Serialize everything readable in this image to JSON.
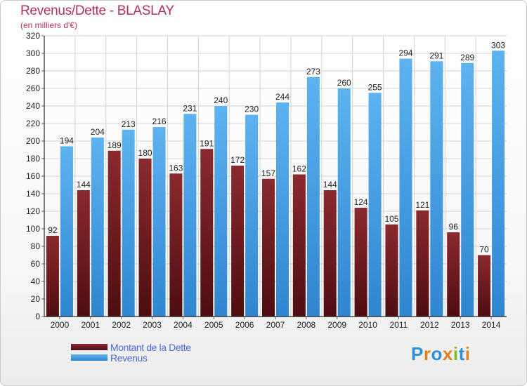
{
  "title": "Revenus/Dette - BLASLAY",
  "subtitle": "(en milliers d'€)",
  "colors": {
    "dette": "#6b1a1f",
    "revenus": "#3f9ee6",
    "grid": "#d4d4d4",
    "axis": "#000000"
  },
  "chart_data": {
    "type": "bar",
    "categories": [
      "2000",
      "2001",
      "2002",
      "2003",
      "2004",
      "2005",
      "2006",
      "2007",
      "2008",
      "2009",
      "2010",
      "2011",
      "2012",
      "2013",
      "2014"
    ],
    "series": [
      {
        "name": "Montant de la Dette",
        "values": [
          92,
          144,
          189,
          180,
          163,
          191,
          172,
          157,
          162,
          144,
          124,
          105,
          121,
          96,
          70
        ]
      },
      {
        "name": "Revenus",
        "values": [
          194,
          204,
          213,
          216,
          231,
          240,
          230,
          244,
          273,
          260,
          255,
          294,
          291,
          289,
          303
        ]
      }
    ],
    "ylim": [
      0,
      320
    ],
    "yticks": [
      0,
      20,
      40,
      60,
      80,
      100,
      120,
      140,
      160,
      180,
      200,
      220,
      240,
      260,
      280,
      300,
      320
    ],
    "grid": true,
    "legend_position": "bottom-left"
  },
  "legend": {
    "dette_label": "Montant de la Dette",
    "revenus_label": "Revenus"
  },
  "logo": {
    "text": "Proxiti"
  }
}
